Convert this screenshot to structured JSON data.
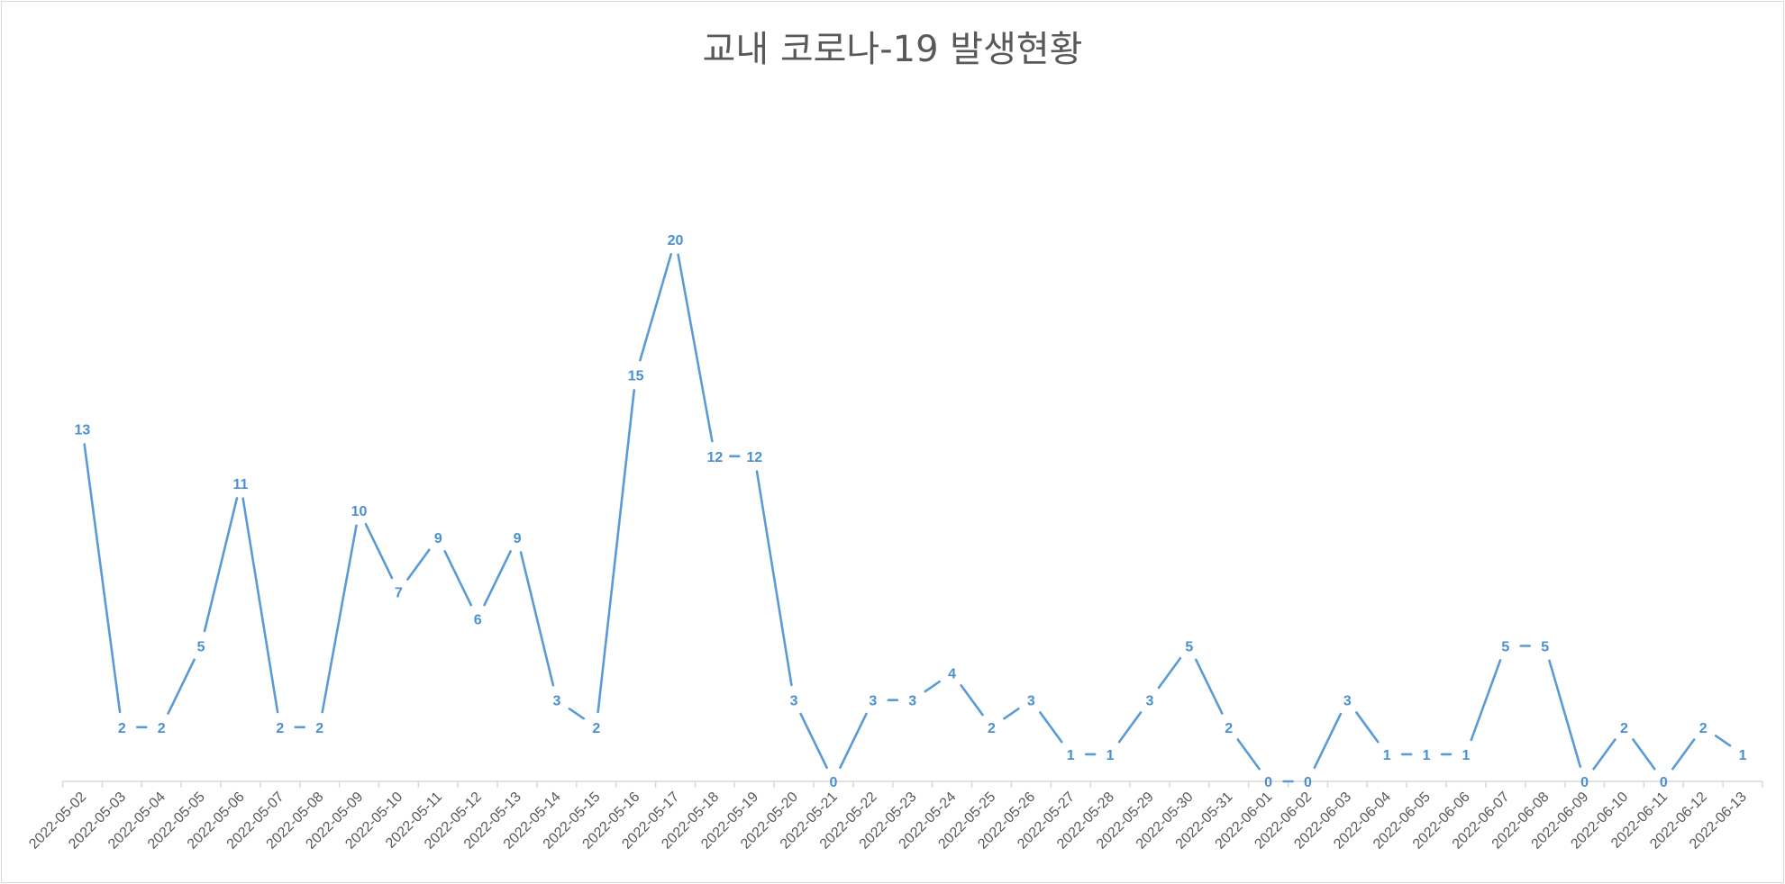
{
  "chart_data": {
    "type": "line",
    "title": "교내 코로나-19 발생현황",
    "categories": [
      "2022-05-02",
      "2022-05-03",
      "2022-05-04",
      "2022-05-05",
      "2022-05-06",
      "2022-05-07",
      "2022-05-08",
      "2022-05-09",
      "2022-05-10",
      "2022-05-11",
      "2022-05-12",
      "2022-05-13",
      "2022-05-14",
      "2022-05-15",
      "2022-05-16",
      "2022-05-17",
      "2022-05-18",
      "2022-05-19",
      "2022-05-20",
      "2022-05-21",
      "2022-05-22",
      "2022-05-23",
      "2022-05-24",
      "2022-05-25",
      "2022-05-26",
      "2022-05-27",
      "2022-05-28",
      "2022-05-29",
      "2022-05-30",
      "2022-05-31",
      "2022-06-01",
      "2022-06-02",
      "2022-06-03",
      "2022-06-04",
      "2022-06-05",
      "2022-06-06",
      "2022-06-07",
      "2022-06-08",
      "2022-06-09",
      "2022-06-10",
      "2022-06-11",
      "2022-06-12",
      "2022-06-13"
    ],
    "values": [
      13,
      2,
      2,
      5,
      11,
      2,
      2,
      10,
      7,
      9,
      6,
      9,
      3,
      2,
      15,
      20,
      12,
      12,
      3,
      0,
      3,
      3,
      4,
      2,
      3,
      1,
      1,
      3,
      5,
      2,
      0,
      0,
      3,
      1,
      1,
      1,
      5,
      5,
      0,
      2,
      0,
      2,
      1
    ],
    "xlabel": "",
    "ylabel": "",
    "ylim": [
      0,
      22
    ],
    "grid": false,
    "legend": "none",
    "data_labels": true,
    "line_color": "#5B9BD5",
    "label_color": "#4A90D0",
    "axis_color": "#d9d9d9",
    "tick_color": "#595959"
  }
}
